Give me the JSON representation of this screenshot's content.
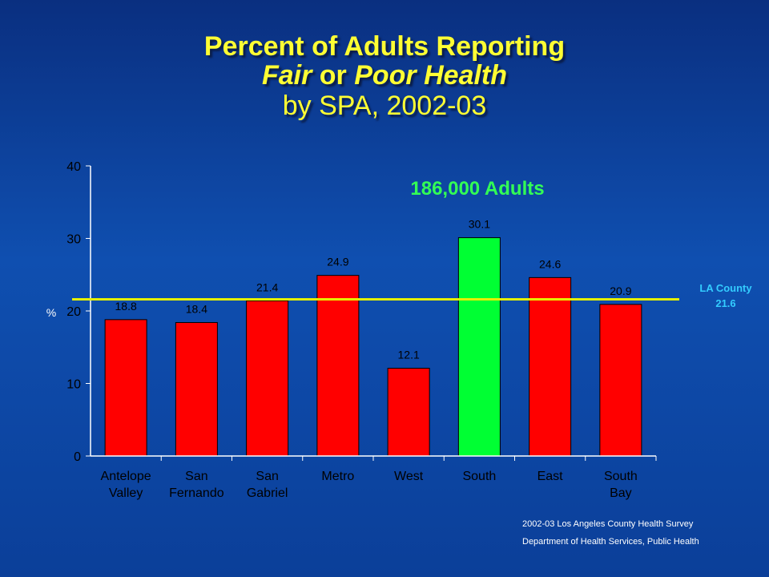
{
  "title": {
    "line1": "Percent of Adults Reporting",
    "line2_a": "Fair",
    "line2_b": " or ",
    "line2_c": "Poor Health",
    "line3": "by SPA, 2002-03"
  },
  "annotation": "186,000 Adults",
  "reference": {
    "label_line1": "LA County",
    "label_line2": "21.6",
    "value": 21.6
  },
  "footer": {
    "line1": "2002-03 Los Angeles County Health Survey",
    "line2": "Department of Health Services, Public Health"
  },
  "colors": {
    "bar": "#ff0000",
    "highlight": "#00ff33",
    "reference_line": "#e6f000",
    "reference_label": "#33ccff",
    "annotation": "#33ff55",
    "axis": "#ffffff"
  },
  "chart_data": {
    "type": "bar",
    "categories": [
      [
        "Antelope",
        "Valley"
      ],
      [
        "San",
        "Fernando"
      ],
      [
        "San",
        "Gabriel"
      ],
      [
        "Metro"
      ],
      [
        "West"
      ],
      [
        "South"
      ],
      [
        "East"
      ],
      [
        "South",
        "Bay"
      ]
    ],
    "values": [
      18.8,
      18.4,
      21.4,
      24.9,
      12.1,
      30.1,
      24.6,
      20.9
    ],
    "value_labels": [
      "18.8",
      "18.4",
      "21.4",
      "24.9",
      "12.1",
      "30.1",
      "24.6",
      "20.9"
    ],
    "highlight_index": 5,
    "ylabel": "%",
    "ylim": [
      0,
      40
    ],
    "yticks": [
      0,
      10,
      20,
      30,
      40
    ],
    "grid": false
  }
}
